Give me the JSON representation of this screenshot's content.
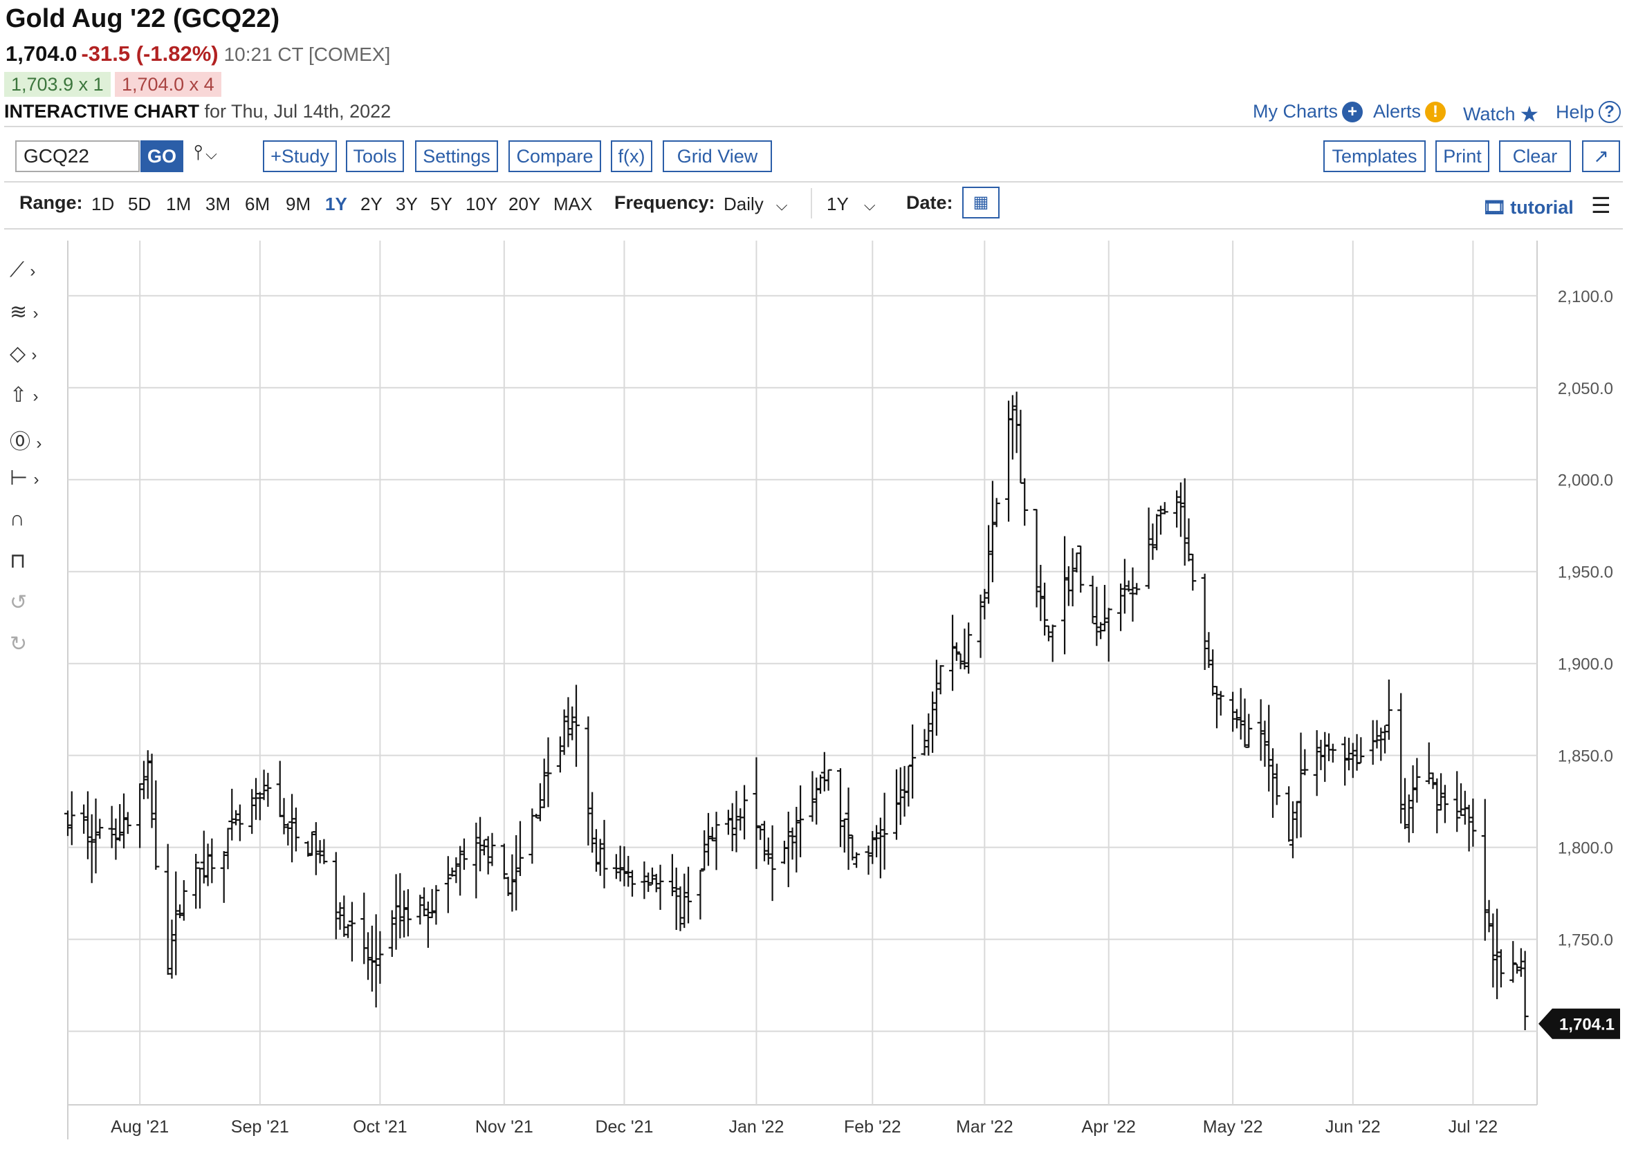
{
  "header": {
    "title": "Gold Aug '22 (GCQ22)",
    "last": "1,704.0",
    "change": "-31.5 (-1.82%)",
    "meta": "10:21 CT [COMEX]",
    "bid": "1,703.9 x 1",
    "ask": "1,704.0 x 4",
    "chart_label": "INTERACTIVE CHART",
    "chart_date": "for Thu, Jul 14th, 2022"
  },
  "top_links": {
    "my_charts": "My Charts",
    "alerts": "Alerts",
    "watch": "Watch",
    "help": "Help"
  },
  "toolbar": {
    "symbol": "GCQ22",
    "go": "GO",
    "study": "+Study",
    "tools": "Tools",
    "settings": "Settings",
    "compare": "Compare",
    "fx": "f(x)",
    "grid_view": "Grid View",
    "templates": "Templates",
    "print": "Print",
    "clear": "Clear"
  },
  "range_bar": {
    "range_label": "Range:",
    "ranges": [
      "1D",
      "5D",
      "1M",
      "3M",
      "6M",
      "9M",
      "1Y",
      "2Y",
      "3Y",
      "5Y",
      "10Y",
      "20Y",
      "MAX"
    ],
    "active_range": "1Y",
    "frequency_label": "Frequency:",
    "frequency": "Daily",
    "period": "1Y",
    "date_label": "Date:",
    "tutorial": "tutorial"
  },
  "icons": {
    "left_tools": [
      "line-tool-icon",
      "fib-tool-icon",
      "shape-tool-icon",
      "arrow-tool-icon",
      "label-tool-icon",
      "measure-tool-icon",
      "magnet-icon",
      "unlock-icon",
      "undo-icon",
      "redo-icon"
    ]
  },
  "colors": {
    "bars": "#111111",
    "grid": "#d9d9d9",
    "link": "#2b5ea8",
    "down": "#b22222"
  },
  "chart_data": {
    "type": "ohlc-bar",
    "frequency": "daily",
    "ylim": [
      1660,
      2130
    ],
    "yticks": [
      2100,
      2050,
      2000,
      1950,
      1900,
      1850,
      1800,
      1750
    ],
    "ytick_labels": [
      "2,100.0",
      "2,050.0",
      "2,000.0",
      "1,950.0",
      "1,900.0",
      "1,850.0",
      "1,800.0",
      "1,750.0"
    ],
    "last_value_label": "1,704.1",
    "last_value": 1704.1,
    "last_gridline": 1700,
    "x_labels": [
      {
        "date": "2021-08-02",
        "label": "Aug '21"
      },
      {
        "date": "2021-09-01",
        "label": "Sep '21"
      },
      {
        "date": "2021-10-01",
        "label": "Oct '21"
      },
      {
        "date": "2021-11-01",
        "label": "Nov '21"
      },
      {
        "date": "2021-12-01",
        "label": "Dec '21"
      },
      {
        "date": "2022-01-03",
        "label": "Jan '22"
      },
      {
        "date": "2022-02-01",
        "label": "Feb '22"
      },
      {
        "date": "2022-03-01",
        "label": "Mar '22"
      },
      {
        "date": "2022-04-01",
        "label": "Apr '22"
      },
      {
        "date": "2022-05-02",
        "label": "May '22"
      },
      {
        "date": "2022-06-01",
        "label": "Jun '22"
      },
      {
        "date": "2022-07-01",
        "label": "Jul '22"
      }
    ],
    "x_start": "2021-07-15",
    "x_end": "2022-07-17",
    "waypoints": [
      [
        "2021-07-15",
        1815
      ],
      [
        "2021-07-23",
        1806
      ],
      [
        "2021-07-30",
        1815
      ],
      [
        "2021-08-04",
        1840
      ],
      [
        "2021-08-06",
        1795
      ],
      [
        "2021-08-09",
        1740
      ],
      [
        "2021-08-13",
        1780
      ],
      [
        "2021-08-20",
        1795
      ],
      [
        "2021-08-27",
        1812
      ],
      [
        "2021-09-03",
        1830
      ],
      [
        "2021-09-10",
        1804
      ],
      [
        "2021-09-15",
        1800
      ],
      [
        "2021-09-20",
        1770
      ],
      [
        "2021-09-24",
        1755
      ],
      [
        "2021-09-29",
        1735
      ],
      [
        "2021-10-05",
        1762
      ],
      [
        "2021-10-14",
        1770
      ],
      [
        "2021-10-22",
        1795
      ],
      [
        "2021-10-28",
        1798
      ],
      [
        "2021-11-03",
        1778
      ],
      [
        "2021-11-10",
        1830
      ],
      [
        "2021-11-16",
        1865
      ],
      [
        "2021-11-19",
        1862
      ],
      [
        "2021-11-23",
        1800
      ],
      [
        "2021-11-29",
        1785
      ],
      [
        "2021-12-08",
        1786
      ],
      [
        "2021-12-15",
        1765
      ],
      [
        "2021-12-22",
        1800
      ],
      [
        "2021-12-31",
        1825
      ],
      [
        "2022-01-07",
        1795
      ],
      [
        "2022-01-14",
        1820
      ],
      [
        "2022-01-21",
        1842
      ],
      [
        "2022-01-27",
        1795
      ],
      [
        "2022-02-01",
        1800
      ],
      [
        "2022-02-07",
        1822
      ],
      [
        "2022-02-14",
        1860
      ],
      [
        "2022-02-18",
        1900
      ],
      [
        "2022-02-24",
        1905
      ],
      [
        "2022-03-01",
        1945
      ],
      [
        "2022-03-08",
        2045
      ],
      [
        "2022-03-11",
        1985
      ],
      [
        "2022-03-16",
        1918
      ],
      [
        "2022-03-24",
        1955
      ],
      [
        "2022-03-29",
        1915
      ],
      [
        "2022-04-01",
        1928
      ],
      [
        "2022-04-08",
        1945
      ],
      [
        "2022-04-14",
        1980
      ],
      [
        "2022-04-19",
        1982
      ],
      [
        "2022-04-22",
        1940
      ],
      [
        "2022-04-27",
        1888
      ],
      [
        "2022-05-03",
        1865
      ],
      [
        "2022-05-09",
        1858
      ],
      [
        "2022-05-16",
        1810
      ],
      [
        "2022-05-20",
        1842
      ],
      [
        "2022-05-27",
        1855
      ],
      [
        "2022-06-03",
        1850
      ],
      [
        "2022-06-10",
        1870
      ],
      [
        "2022-06-14",
        1810
      ],
      [
        "2022-06-17",
        1840
      ],
      [
        "2022-06-24",
        1826
      ],
      [
        "2022-06-29",
        1817
      ],
      [
        "2022-07-01",
        1805
      ],
      [
        "2022-07-06",
        1740
      ],
      [
        "2022-07-11",
        1732
      ],
      [
        "2022-07-13",
        1735
      ],
      [
        "2022-07-14",
        1704
      ]
    ]
  }
}
